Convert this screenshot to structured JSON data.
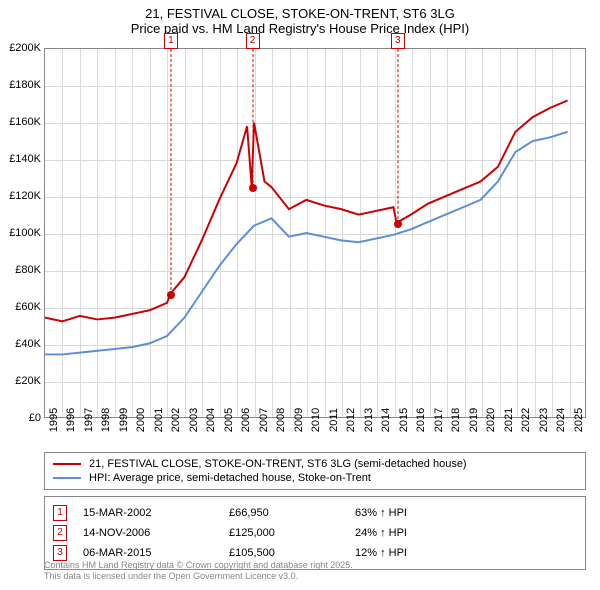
{
  "title": {
    "line1": "21, FESTIVAL CLOSE, STOKE-ON-TRENT, ST6 3LG",
    "line2": "Price paid vs. HM Land Registry's House Price Index (HPI)",
    "fontsize": 13,
    "color": "#000000"
  },
  "chart": {
    "type": "line",
    "background_color": "#ffffff",
    "grid_color": "#d9d9d9",
    "border_color": "#888888",
    "x": {
      "min": 1995,
      "max": 2026,
      "ticks": [
        1995,
        1996,
        1997,
        1998,
        1999,
        2000,
        2001,
        2002,
        2003,
        2004,
        2005,
        2006,
        2007,
        2008,
        2009,
        2010,
        2011,
        2012,
        2013,
        2014,
        2015,
        2016,
        2017,
        2018,
        2019,
        2020,
        2021,
        2022,
        2023,
        2024,
        2025
      ],
      "tick_fontsize": 11,
      "tick_rotation_deg": -90
    },
    "y": {
      "min": 0,
      "max": 200000,
      "tick_step": 20000,
      "tick_prefix": "£",
      "tick_suffix": "K",
      "tick_divisor": 1000,
      "tick_fontsize": 11
    },
    "series": [
      {
        "id": "price_paid",
        "label": "21, FESTIVAL CLOSE, STOKE-ON-TRENT, ST6 3LG (semi-detached house)",
        "color": "#cc0000",
        "line_width": 2,
        "points": [
          [
            1995,
            54000
          ],
          [
            1996,
            52000
          ],
          [
            1997,
            55000
          ],
          [
            1998,
            53000
          ],
          [
            1999,
            54000
          ],
          [
            2000,
            56000
          ],
          [
            2001,
            58000
          ],
          [
            2002,
            62000
          ],
          [
            2002.2,
            66950
          ],
          [
            2003,
            76000
          ],
          [
            2004,
            96000
          ],
          [
            2005,
            118000
          ],
          [
            2006,
            138000
          ],
          [
            2006.6,
            158000
          ],
          [
            2006.87,
            125000
          ],
          [
            2007,
            160000
          ],
          [
            2007.6,
            128000
          ],
          [
            2008,
            125000
          ],
          [
            2009,
            113000
          ],
          [
            2010,
            118000
          ],
          [
            2011,
            115000
          ],
          [
            2012,
            113000
          ],
          [
            2013,
            110000
          ],
          [
            2014,
            112000
          ],
          [
            2015,
            114000
          ],
          [
            2015.18,
            105500
          ],
          [
            2016,
            110000
          ],
          [
            2017,
            116000
          ],
          [
            2018,
            120000
          ],
          [
            2019,
            124000
          ],
          [
            2020,
            128000
          ],
          [
            2021,
            136000
          ],
          [
            2022,
            155000
          ],
          [
            2023,
            163000
          ],
          [
            2024,
            168000
          ],
          [
            2025,
            172000
          ]
        ]
      },
      {
        "id": "hpi",
        "label": "HPI: Average price, semi-detached house, Stoke-on-Trent",
        "color": "#5b8fd6",
        "line_width": 2,
        "points": [
          [
            1995,
            34000
          ],
          [
            1996,
            34000
          ],
          [
            1997,
            35000
          ],
          [
            1998,
            36000
          ],
          [
            1999,
            37000
          ],
          [
            2000,
            38000
          ],
          [
            2001,
            40000
          ],
          [
            2002,
            44000
          ],
          [
            2003,
            54000
          ],
          [
            2004,
            68000
          ],
          [
            2005,
            82000
          ],
          [
            2006,
            94000
          ],
          [
            2007,
            104000
          ],
          [
            2008,
            108000
          ],
          [
            2009,
            98000
          ],
          [
            2010,
            100000
          ],
          [
            2011,
            98000
          ],
          [
            2012,
            96000
          ],
          [
            2013,
            95000
          ],
          [
            2014,
            97000
          ],
          [
            2015,
            99000
          ],
          [
            2016,
            102000
          ],
          [
            2017,
            106000
          ],
          [
            2018,
            110000
          ],
          [
            2019,
            114000
          ],
          [
            2020,
            118000
          ],
          [
            2021,
            128000
          ],
          [
            2022,
            144000
          ],
          [
            2023,
            150000
          ],
          [
            2024,
            152000
          ],
          [
            2025,
            155000
          ]
        ]
      }
    ],
    "markers": [
      {
        "n": "1",
        "x": 2002.2,
        "y": 66950
      },
      {
        "n": "2",
        "x": 2006.87,
        "y": 125000
      },
      {
        "n": "3",
        "x": 2015.18,
        "y": 105500
      }
    ]
  },
  "legend": {
    "border_color": "#888888",
    "fontsize": 11,
    "items": [
      {
        "color": "#cc0000",
        "text": "21, FESTIVAL CLOSE, STOKE-ON-TRENT, ST6 3LG (semi-detached house)"
      },
      {
        "color": "#5b8fd6",
        "text": "HPI: Average price, semi-detached house, Stoke-on-Trent"
      }
    ]
  },
  "sales": {
    "border_color": "#888888",
    "fontsize": 11,
    "rows": [
      {
        "n": "1",
        "date": "15-MAR-2002",
        "price": "£66,950",
        "hpi": "63% ↑ HPI"
      },
      {
        "n": "2",
        "date": "14-NOV-2006",
        "price": "£125,000",
        "hpi": "24% ↑ HPI"
      },
      {
        "n": "3",
        "date": "06-MAR-2015",
        "price": "£105,500",
        "hpi": "12% ↑ HPI"
      }
    ]
  },
  "attribution": {
    "line1": "Contains HM Land Registry data © Crown copyright and database right 2025.",
    "line2": "This data is licensed under the Open Government Licence v3.0.",
    "color": "#888888",
    "fontsize": 9
  }
}
